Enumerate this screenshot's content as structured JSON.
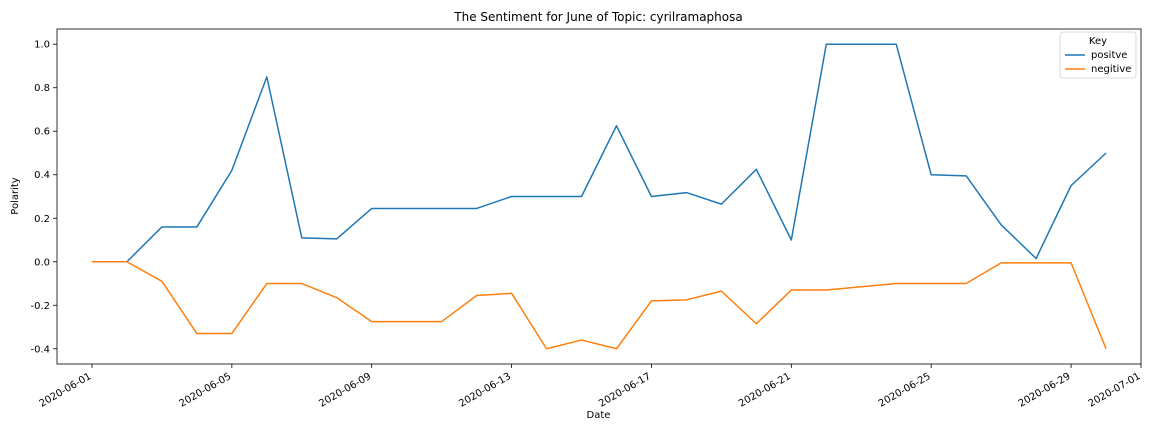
{
  "chart_data": {
    "type": "line",
    "title": "The Sentiment for June of Topic: cyrilramaphosa",
    "xlabel": "Date",
    "ylabel": "Polarity",
    "x": [
      "2020-06-01",
      "2020-06-02",
      "2020-06-03",
      "2020-06-04",
      "2020-06-05",
      "2020-06-06",
      "2020-06-07",
      "2020-06-08",
      "2020-06-09",
      "2020-06-10",
      "2020-06-11",
      "2020-06-12",
      "2020-06-13",
      "2020-06-14",
      "2020-06-15",
      "2020-06-16",
      "2020-06-17",
      "2020-06-18",
      "2020-06-19",
      "2020-06-20",
      "2020-06-21",
      "2020-06-22",
      "2020-06-23",
      "2020-06-24",
      "2020-06-25",
      "2020-06-26",
      "2020-06-27",
      "2020-06-28",
      "2020-06-29",
      "2020-06-30"
    ],
    "series": [
      {
        "name": "positve",
        "color": "#1f77b4",
        "values": [
          0.0,
          0.0,
          0.16,
          0.16,
          0.42,
          0.85,
          0.11,
          0.105,
          0.245,
          0.245,
          0.245,
          0.245,
          0.3,
          0.3,
          0.3,
          0.625,
          0.3,
          0.318,
          0.265,
          0.425,
          0.1,
          1.0,
          1.0,
          1.0,
          0.4,
          0.395,
          0.17,
          0.015,
          0.35,
          0.5
        ]
      },
      {
        "name": "negitive",
        "color": "#ff7f0e",
        "values": [
          0.0,
          0.0,
          -0.09,
          -0.33,
          -0.33,
          -0.1,
          -0.1,
          -0.165,
          -0.275,
          -0.275,
          -0.275,
          -0.155,
          -0.145,
          -0.4,
          -0.36,
          -0.4,
          -0.18,
          -0.175,
          -0.135,
          -0.285,
          -0.13,
          -0.13,
          -0.115,
          -0.1,
          -0.1,
          -0.1,
          -0.005,
          -0.005,
          -0.005,
          -0.4
        ]
      }
    ],
    "xticks": [
      "2020-06-01",
      "2020-06-05",
      "2020-06-09",
      "2020-06-13",
      "2020-06-17",
      "2020-06-21",
      "2020-06-25",
      "2020-06-29",
      "2020-07-01"
    ],
    "xlim": [
      "2020-05-31",
      "2020-07-01"
    ],
    "yticks": [
      -0.4,
      -0.2,
      0.0,
      0.2,
      0.4,
      0.6,
      0.8,
      1.0
    ],
    "ylim": [
      -0.47,
      1.07
    ],
    "legend": {
      "title": "Key",
      "placement": "top-right"
    },
    "grid": false
  }
}
